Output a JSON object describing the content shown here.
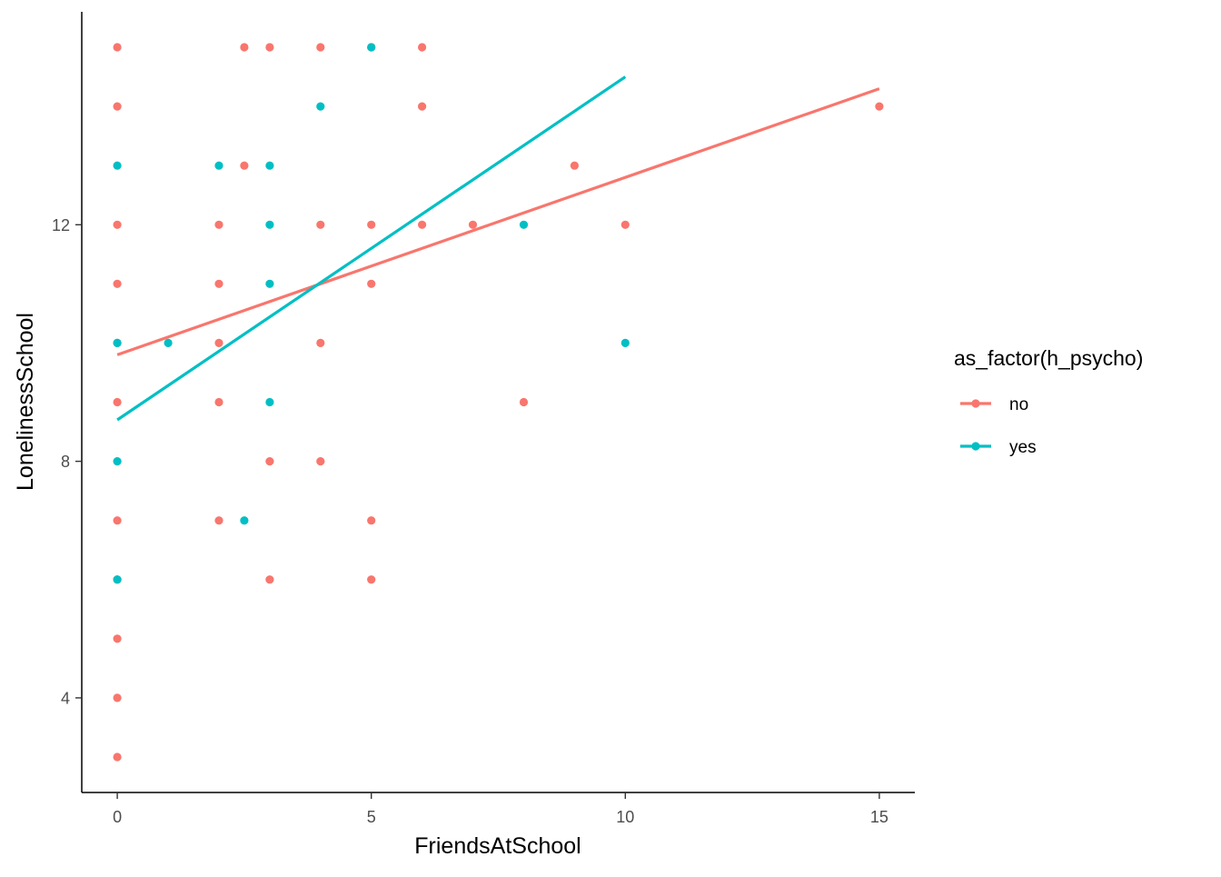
{
  "chart_data": {
    "type": "scatter",
    "title": "",
    "xlabel": "FriendsAtSchool",
    "ylabel": "LonelinessSchool",
    "xlim": [
      -0.7,
      15.7
    ],
    "ylim": [
      2.4,
      15.6
    ],
    "xticks": [
      0,
      5,
      10,
      15
    ],
    "yticks": [
      4,
      8,
      12
    ],
    "xtick_labels": [
      "0",
      "5",
      "10",
      "15"
    ],
    "ytick_labels": [
      "4",
      "8",
      "12"
    ],
    "grid": false,
    "legend": {
      "title": "as_factor(h_psycho)",
      "placement": "right"
    },
    "series": [
      {
        "name": "no",
        "color": "#F8766D",
        "points": [
          [
            0,
            15
          ],
          [
            0,
            14
          ],
          [
            0,
            12
          ],
          [
            0,
            11
          ],
          [
            0,
            10
          ],
          [
            0,
            9
          ],
          [
            0,
            7
          ],
          [
            0,
            6
          ],
          [
            0,
            5
          ],
          [
            0,
            4
          ],
          [
            0,
            3
          ],
          [
            2,
            12
          ],
          [
            2,
            11
          ],
          [
            2,
            10
          ],
          [
            2,
            9
          ],
          [
            2,
            7
          ],
          [
            2.5,
            15
          ],
          [
            2.5,
            13
          ],
          [
            3,
            15
          ],
          [
            3,
            8
          ],
          [
            3,
            6
          ],
          [
            4,
            15
          ],
          [
            4,
            12
          ],
          [
            4,
            10
          ],
          [
            4,
            8
          ],
          [
            5,
            15
          ],
          [
            5,
            12
          ],
          [
            5,
            11
          ],
          [
            5,
            7
          ],
          [
            5,
            6
          ],
          [
            6,
            15
          ],
          [
            6,
            14
          ],
          [
            6,
            12
          ],
          [
            7,
            12
          ],
          [
            8,
            9
          ],
          [
            9,
            13
          ],
          [
            10,
            12
          ],
          [
            15,
            14
          ]
        ],
        "fit": [
          [
            0,
            9.8
          ],
          [
            15,
            14.3
          ]
        ]
      },
      {
        "name": "yes",
        "color": "#00BFC4",
        "points": [
          [
            0,
            13
          ],
          [
            0,
            10
          ],
          [
            0,
            8
          ],
          [
            0,
            6
          ],
          [
            1,
            10
          ],
          [
            2,
            13
          ],
          [
            2.5,
            7
          ],
          [
            3,
            13
          ],
          [
            3,
            12
          ],
          [
            3,
            11
          ],
          [
            3,
            9
          ],
          [
            4,
            14
          ],
          [
            5,
            15
          ],
          [
            8,
            12
          ],
          [
            10,
            10
          ]
        ],
        "fit": [
          [
            0,
            8.7
          ],
          [
            10,
            14.5
          ]
        ]
      }
    ]
  }
}
